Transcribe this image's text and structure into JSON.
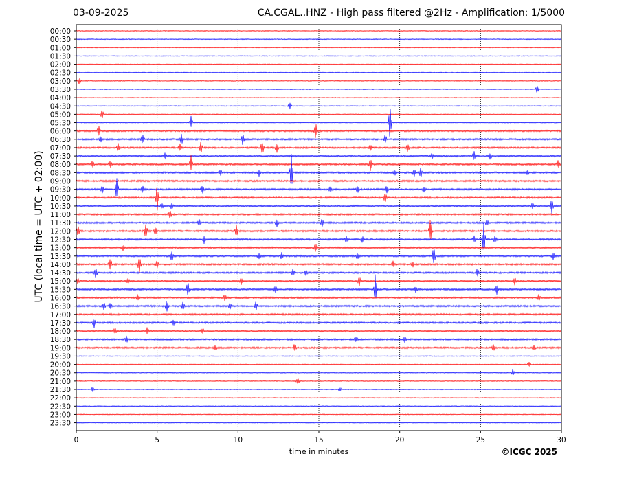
{
  "header": {
    "date": "03-09-2025",
    "title": "CA.CGAL..HNZ - High pass filtered @2Hz - Amplification: 1/5000"
  },
  "copyright": "©ICGC 2025",
  "chart_data": {
    "type": "line",
    "title": "CA.CGAL..HNZ - High pass filtered @2Hz - Amplification: 1/5000",
    "xlabel": "time in minutes",
    "ylabel": "UTC (local time = UTC + 02:00)",
    "xlim": [
      0,
      30
    ],
    "x_ticks": [
      0,
      5,
      10,
      15,
      20,
      25,
      30
    ],
    "grid": "vertical dotted lines at 5, 10, 15, 20, 25",
    "rows": [
      "00:00",
      "00:30",
      "01:00",
      "01:30",
      "02:00",
      "02:30",
      "03:00",
      "03:30",
      "04:00",
      "04:30",
      "05:00",
      "05:30",
      "06:00",
      "06:30",
      "07:00",
      "07:30",
      "08:00",
      "08:30",
      "09:00",
      "09:30",
      "10:00",
      "10:30",
      "11:00",
      "11:30",
      "12:00",
      "12:30",
      "13:00",
      "13:30",
      "14:00",
      "14:30",
      "15:00",
      "15:30",
      "16:00",
      "16:30",
      "17:00",
      "17:30",
      "18:00",
      "18:30",
      "19:00",
      "19:30",
      "20:00",
      "20:30",
      "21:00",
      "21:30",
      "22:00",
      "22:30",
      "23:00",
      "23:30"
    ],
    "trace_colors": [
      "#ff0000",
      "#0000ff"
    ],
    "events": [
      {
        "row": "03:00",
        "minute": 0.2,
        "amp": 0.5
      },
      {
        "row": "03:30",
        "minute": 28.5,
        "amp": 0.6
      },
      {
        "row": "04:30",
        "minute": 13.2,
        "amp": 0.5
      },
      {
        "row": "05:00",
        "minute": 1.6,
        "amp": 0.6
      },
      {
        "row": "05:30",
        "minute": 7.1,
        "amp": 0.8
      },
      {
        "row": "05:30",
        "minute": 19.4,
        "amp": 2.2
      },
      {
        "row": "06:00",
        "minute": 1.4,
        "amp": 0.7
      },
      {
        "row": "06:00",
        "minute": 14.8,
        "amp": 1.0
      },
      {
        "row": "06:30",
        "minute": 1.5,
        "amp": 0.5
      },
      {
        "row": "06:30",
        "minute": 4.1,
        "amp": 0.7
      },
      {
        "row": "06:30",
        "minute": 6.5,
        "amp": 0.6
      },
      {
        "row": "06:30",
        "minute": 10.3,
        "amp": 0.7
      },
      {
        "row": "06:30",
        "minute": 19.1,
        "amp": 0.5
      },
      {
        "row": "07:00",
        "minute": 2.6,
        "amp": 0.5
      },
      {
        "row": "07:00",
        "minute": 6.4,
        "amp": 0.5
      },
      {
        "row": "07:00",
        "minute": 7.7,
        "amp": 0.7
      },
      {
        "row": "07:00",
        "minute": 11.5,
        "amp": 0.9
      },
      {
        "row": "07:00",
        "minute": 12.4,
        "amp": 0.6
      },
      {
        "row": "07:00",
        "minute": 18.2,
        "amp": 0.5
      },
      {
        "row": "07:00",
        "minute": 20.5,
        "amp": 0.6
      },
      {
        "row": "07:30",
        "minute": 5.5,
        "amp": 0.4
      },
      {
        "row": "07:30",
        "minute": 22.0,
        "amp": 0.4
      },
      {
        "row": "07:30",
        "minute": 24.6,
        "amp": 0.6
      },
      {
        "row": "07:30",
        "minute": 25.6,
        "amp": 0.4
      },
      {
        "row": "08:00",
        "minute": 1.0,
        "amp": 0.5
      },
      {
        "row": "08:00",
        "minute": 2.1,
        "amp": 0.5
      },
      {
        "row": "08:00",
        "minute": 7.1,
        "amp": 1.2
      },
      {
        "row": "08:00",
        "minute": 18.2,
        "amp": 1.0
      },
      {
        "row": "08:00",
        "minute": 29.8,
        "amp": 0.6
      },
      {
        "row": "08:30",
        "minute": 8.9,
        "amp": 0.4
      },
      {
        "row": "08:30",
        "minute": 11.3,
        "amp": 0.4
      },
      {
        "row": "08:30",
        "minute": 13.3,
        "amp": 2.2
      },
      {
        "row": "08:30",
        "minute": 19.7,
        "amp": 0.4
      },
      {
        "row": "08:30",
        "minute": 20.9,
        "amp": 0.6
      },
      {
        "row": "08:30",
        "minute": 21.3,
        "amp": 0.6
      },
      {
        "row": "08:30",
        "minute": 27.9,
        "amp": 0.4
      },
      {
        "row": "09:30",
        "minute": 1.6,
        "amp": 0.5
      },
      {
        "row": "09:30",
        "minute": 2.5,
        "amp": 1.8
      },
      {
        "row": "09:30",
        "minute": 4.1,
        "amp": 0.4
      },
      {
        "row": "09:30",
        "minute": 7.8,
        "amp": 0.5
      },
      {
        "row": "09:30",
        "minute": 15.7,
        "amp": 0.4
      },
      {
        "row": "09:30",
        "minute": 17.4,
        "amp": 0.4
      },
      {
        "row": "09:30",
        "minute": 19.2,
        "amp": 0.5
      },
      {
        "row": "09:30",
        "minute": 21.5,
        "amp": 0.4
      },
      {
        "row": "10:00",
        "minute": 5.0,
        "amp": 1.6
      },
      {
        "row": "10:00",
        "minute": 19.1,
        "amp": 0.6
      },
      {
        "row": "10:30",
        "minute": 5.3,
        "amp": 0.4
      },
      {
        "row": "10:30",
        "minute": 5.9,
        "amp": 0.4
      },
      {
        "row": "10:30",
        "minute": 28.2,
        "amp": 0.5
      },
      {
        "row": "10:30",
        "minute": 29.4,
        "amp": 1.0
      },
      {
        "row": "11:00",
        "minute": 5.8,
        "amp": 0.5
      },
      {
        "row": "11:30",
        "minute": 7.6,
        "amp": 0.4
      },
      {
        "row": "11:30",
        "minute": 12.4,
        "amp": 0.5
      },
      {
        "row": "11:30",
        "minute": 15.2,
        "amp": 0.5
      },
      {
        "row": "11:30",
        "minute": 25.4,
        "amp": 0.4
      },
      {
        "row": "12:00",
        "minute": 0.1,
        "amp": 0.6
      },
      {
        "row": "12:00",
        "minute": 4.3,
        "amp": 1.0
      },
      {
        "row": "12:00",
        "minute": 4.9,
        "amp": 0.6
      },
      {
        "row": "12:00",
        "minute": 9.9,
        "amp": 0.7
      },
      {
        "row": "12:00",
        "minute": 21.9,
        "amp": 1.8
      },
      {
        "row": "12:30",
        "minute": 7.9,
        "amp": 0.6
      },
      {
        "row": "12:30",
        "minute": 16.7,
        "amp": 0.4
      },
      {
        "row": "12:30",
        "minute": 17.7,
        "amp": 0.4
      },
      {
        "row": "12:30",
        "minute": 24.6,
        "amp": 0.4
      },
      {
        "row": "12:30",
        "minute": 25.2,
        "amp": 2.0
      },
      {
        "row": "12:30",
        "minute": 25.9,
        "amp": 0.4
      },
      {
        "row": "13:00",
        "minute": 2.9,
        "amp": 0.4
      },
      {
        "row": "13:00",
        "minute": 14.8,
        "amp": 0.6
      },
      {
        "row": "13:30",
        "minute": 5.9,
        "amp": 0.7
      },
      {
        "row": "13:30",
        "minute": 11.3,
        "amp": 0.4
      },
      {
        "row": "13:30",
        "minute": 12.7,
        "amp": 0.4
      },
      {
        "row": "13:30",
        "minute": 17.4,
        "amp": 0.5
      },
      {
        "row": "13:30",
        "minute": 22.1,
        "amp": 1.2
      },
      {
        "row": "13:30",
        "minute": 29.5,
        "amp": 0.5
      },
      {
        "row": "14:00",
        "minute": 2.1,
        "amp": 0.9
      },
      {
        "row": "14:00",
        "minute": 3.9,
        "amp": 1.0
      },
      {
        "row": "14:00",
        "minute": 5.0,
        "amp": 0.4
      },
      {
        "row": "14:00",
        "minute": 19.6,
        "amp": 0.5
      },
      {
        "row": "14:00",
        "minute": 20.8,
        "amp": 0.4
      },
      {
        "row": "14:30",
        "minute": 1.2,
        "amp": 0.7
      },
      {
        "row": "14:30",
        "minute": 13.4,
        "amp": 0.4
      },
      {
        "row": "14:30",
        "minute": 14.2,
        "amp": 0.4
      },
      {
        "row": "14:30",
        "minute": 24.8,
        "amp": 0.5
      },
      {
        "row": "15:00",
        "minute": 0.1,
        "amp": 0.4
      },
      {
        "row": "15:00",
        "minute": 3.2,
        "amp": 0.4
      },
      {
        "row": "15:00",
        "minute": 10.2,
        "amp": 0.5
      },
      {
        "row": "15:00",
        "minute": 17.5,
        "amp": 0.6
      },
      {
        "row": "15:00",
        "minute": 27.1,
        "amp": 0.5
      },
      {
        "row": "15:30",
        "minute": 6.9,
        "amp": 0.9
      },
      {
        "row": "15:30",
        "minute": 12.3,
        "amp": 0.5
      },
      {
        "row": "15:30",
        "minute": 18.5,
        "amp": 2.0
      },
      {
        "row": "15:30",
        "minute": 21.0,
        "amp": 0.4
      },
      {
        "row": "15:30",
        "minute": 26.0,
        "amp": 0.7
      },
      {
        "row": "16:00",
        "minute": 3.8,
        "amp": 0.5
      },
      {
        "row": "16:00",
        "minute": 9.2,
        "amp": 0.5
      },
      {
        "row": "16:00",
        "minute": 28.6,
        "amp": 0.4
      },
      {
        "row": "16:30",
        "minute": 1.7,
        "amp": 0.5
      },
      {
        "row": "16:30",
        "minute": 2.1,
        "amp": 0.4
      },
      {
        "row": "16:30",
        "minute": 5.6,
        "amp": 0.8
      },
      {
        "row": "16:30",
        "minute": 6.6,
        "amp": 0.5
      },
      {
        "row": "16:30",
        "minute": 9.5,
        "amp": 0.4
      },
      {
        "row": "16:30",
        "minute": 11.1,
        "amp": 0.6
      },
      {
        "row": "17:30",
        "minute": 1.1,
        "amp": 0.7
      },
      {
        "row": "17:30",
        "minute": 6.0,
        "amp": 0.4
      },
      {
        "row": "18:00",
        "minute": 2.4,
        "amp": 0.4
      },
      {
        "row": "18:00",
        "minute": 4.4,
        "amp": 0.5
      },
      {
        "row": "18:00",
        "minute": 7.8,
        "amp": 0.4
      },
      {
        "row": "18:30",
        "minute": 3.1,
        "amp": 0.5
      },
      {
        "row": "18:30",
        "minute": 17.3,
        "amp": 0.4
      },
      {
        "row": "18:30",
        "minute": 20.3,
        "amp": 0.4
      },
      {
        "row": "19:00",
        "minute": 8.6,
        "amp": 0.4
      },
      {
        "row": "19:00",
        "minute": 13.5,
        "amp": 0.5
      },
      {
        "row": "19:00",
        "minute": 25.8,
        "amp": 0.4
      },
      {
        "row": "19:00",
        "minute": 28.3,
        "amp": 0.4
      },
      {
        "row": "20:00",
        "minute": 28.0,
        "amp": 0.4
      },
      {
        "row": "20:30",
        "minute": 27.0,
        "amp": 0.4
      },
      {
        "row": "21:00",
        "minute": 13.7,
        "amp": 0.4
      },
      {
        "row": "21:30",
        "minute": 1.0,
        "amp": 0.4
      },
      {
        "row": "21:30",
        "minute": 16.3,
        "amp": 0.3
      }
    ]
  }
}
